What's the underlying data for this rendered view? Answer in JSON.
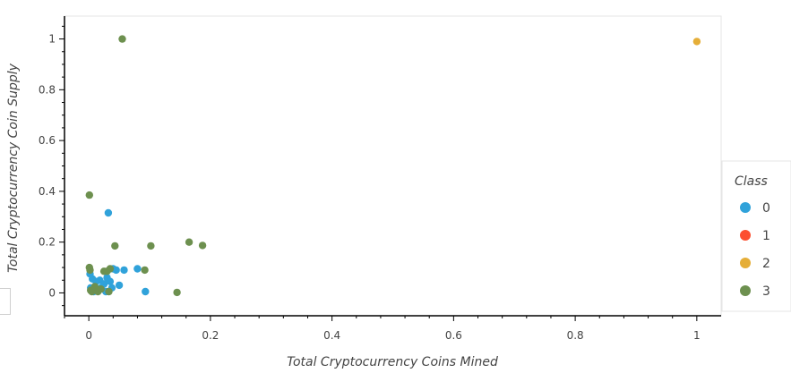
{
  "chart_data": {
    "type": "scatter",
    "xlabel": "Total Cryptocurrency Coins Mined",
    "ylabel": "Total Cryptocurrency Coin Supply",
    "xlim": [
      -0.04,
      1.04
    ],
    "ylim": [
      -0.09,
      1.09
    ],
    "x_ticks": [
      "0",
      "0.2",
      "0.4",
      "0.6",
      "0.8",
      "1"
    ],
    "y_ticks": [
      "0",
      "0.2",
      "0.4",
      "0.6",
      "0.8",
      "1"
    ],
    "grid": false,
    "legend_position": "right",
    "legend_title": "Class",
    "series": [
      {
        "name": "0",
        "color": "#30a2da",
        "points": [
          [
            0.002,
            0.075
          ],
          [
            0.006,
            0.055
          ],
          [
            0.012,
            0.045
          ],
          [
            0.018,
            0.05
          ],
          [
            0.025,
            0.035
          ],
          [
            0.03,
            0.06
          ],
          [
            0.035,
            0.045
          ],
          [
            0.04,
            0.095
          ],
          [
            0.045,
            0.09
          ],
          [
            0.05,
            0.03
          ],
          [
            0.058,
            0.09
          ],
          [
            0.08,
            0.095
          ],
          [
            0.093,
            0.005
          ],
          [
            0.032,
            0.315
          ],
          [
            0.008,
            0.005
          ],
          [
            0.015,
            0.01
          ],
          [
            0.02,
            0.02
          ],
          [
            0.028,
            0.005
          ],
          [
            0.003,
            0.02
          ],
          [
            0.038,
            0.02
          ]
        ]
      },
      {
        "name": "1",
        "color": "#fc4f30",
        "points": []
      },
      {
        "name": "2",
        "color": "#e5ae38",
        "points": [
          [
            1.0,
            0.99
          ]
        ]
      },
      {
        "name": "3",
        "color": "#6d904f",
        "points": [
          [
            0.055,
            1.0
          ],
          [
            0.001,
            0.385
          ],
          [
            0.001,
            0.1
          ],
          [
            0.002,
            0.09
          ],
          [
            0.003,
            0.01
          ],
          [
            0.005,
            0.005
          ],
          [
            0.01,
            0.025
          ],
          [
            0.015,
            0.005
          ],
          [
            0.02,
            0.015
          ],
          [
            0.025,
            0.085
          ],
          [
            0.03,
            0.085
          ],
          [
            0.035,
            0.095
          ],
          [
            0.033,
            0.005
          ],
          [
            0.043,
            0.185
          ],
          [
            0.092,
            0.09
          ],
          [
            0.102,
            0.185
          ],
          [
            0.145,
            0.002
          ],
          [
            0.165,
            0.2
          ],
          [
            0.187,
            0.187
          ]
        ]
      }
    ]
  }
}
